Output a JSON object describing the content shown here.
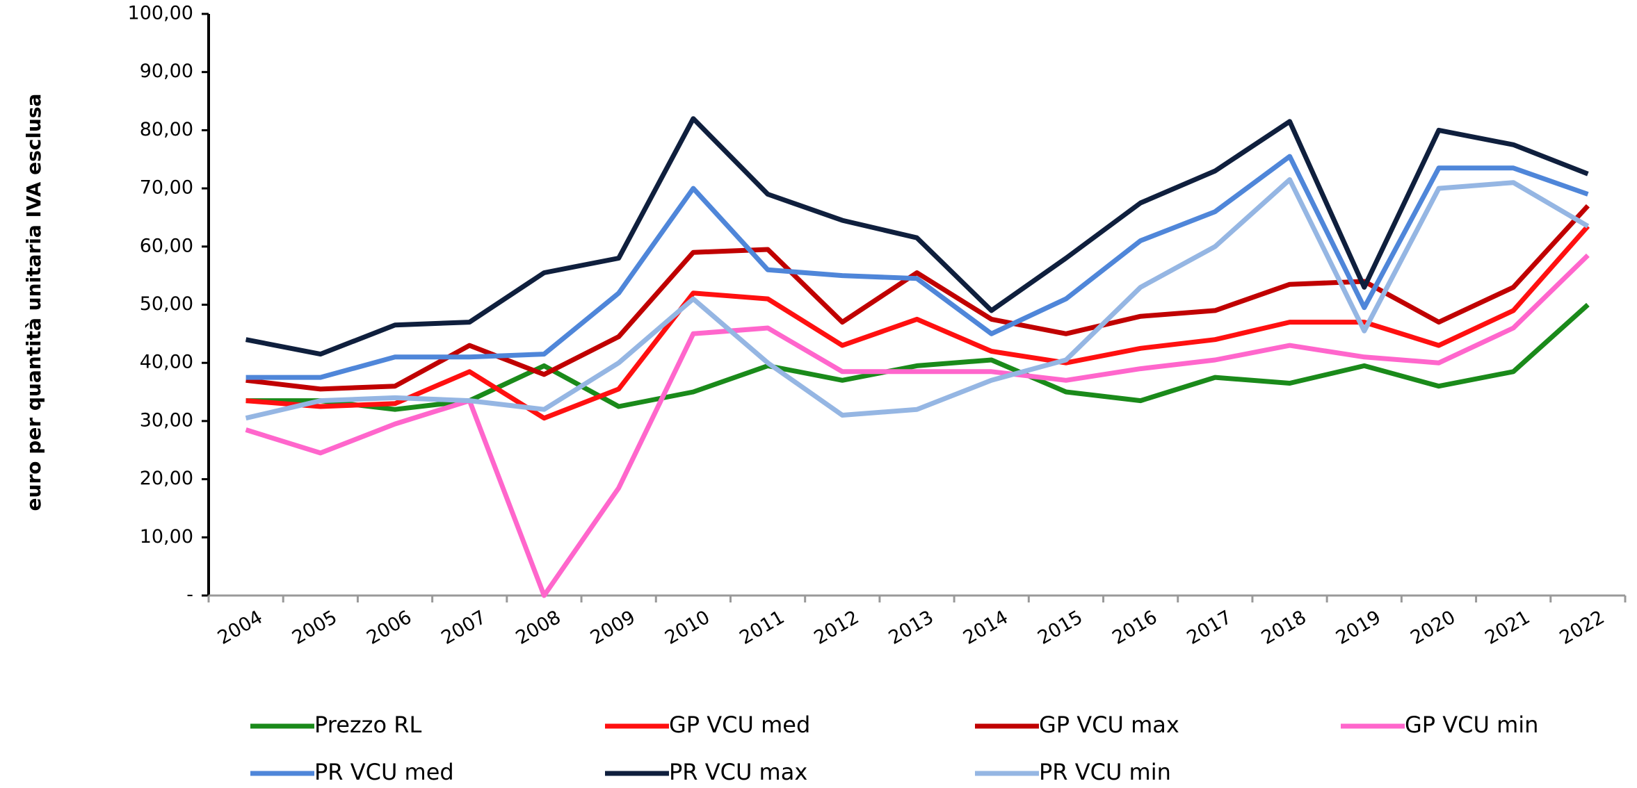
{
  "chart_data": {
    "type": "line",
    "y_label": "euro per quantità unitaria  IVA  esclusa",
    "categories": [
      "2004",
      "2005",
      "2006",
      "2007",
      "2008",
      "2009",
      "2010",
      "2011",
      "2012",
      "2013",
      "2014",
      "2015",
      "2016",
      "2017",
      "2018",
      "2019",
      "2020",
      "2021",
      "2022"
    ],
    "ylim": [
      0,
      100
    ],
    "yticks": [
      {
        "value": 0,
        "label": "-"
      },
      {
        "value": 10,
        "label": "10,00"
      },
      {
        "value": 20,
        "label": "20,00"
      },
      {
        "value": 30,
        "label": "30,00"
      },
      {
        "value": 40,
        "label": "40,00"
      },
      {
        "value": 50,
        "label": "50,00"
      },
      {
        "value": 60,
        "label": "60,00"
      },
      {
        "value": 70,
        "label": "70,00"
      },
      {
        "value": 80,
        "label": "80,00"
      },
      {
        "value": 90,
        "label": "90,00"
      },
      {
        "value": 100,
        "label": "100,00"
      }
    ],
    "grid": false,
    "legend": "bottom",
    "series": [
      {
        "name": "Prezzo RL",
        "color": "#1a8a1a",
        "values": [
          33.5,
          33.5,
          32,
          33.5,
          39.5,
          32.5,
          35,
          39.5,
          37,
          39.5,
          40.5,
          35,
          33.5,
          37.5,
          36.5,
          39.5,
          36,
          38.5,
          50
        ]
      },
      {
        "name": "GP VCU med",
        "color": "#ff1010",
        "values": [
          33.5,
          32.5,
          33,
          38.5,
          30.5,
          35.5,
          52,
          51,
          43,
          47.5,
          42,
          40,
          42.5,
          44,
          47,
          47,
          43,
          49,
          63.5
        ]
      },
      {
        "name": "GP VCU max",
        "color": "#c00000",
        "values": [
          37,
          35.5,
          36,
          43,
          38,
          44.5,
          59,
          59.5,
          47,
          55.5,
          47.5,
          45,
          48,
          49,
          53.5,
          54,
          47,
          53,
          67
        ]
      },
      {
        "name": "GP VCU min",
        "color": "#ff66cc",
        "values": [
          28.5,
          24.5,
          29.5,
          33.5,
          0,
          18.5,
          45,
          46,
          38.5,
          38.5,
          38.5,
          37,
          39,
          40.5,
          43,
          41,
          40,
          46,
          58.5
        ]
      },
      {
        "name": "PR VCU med",
        "color": "#4f86d9",
        "values": [
          37.5,
          37.5,
          41,
          41,
          41.5,
          52,
          70,
          56,
          55,
          54.5,
          45,
          51,
          61,
          66,
          75.5,
          49.5,
          73.5,
          73.5,
          69
        ]
      },
      {
        "name": "PR VCU max",
        "color": "#0f1f3d",
        "values": [
          44,
          41.5,
          46.5,
          47,
          55.5,
          58,
          82,
          69,
          64.5,
          61.5,
          49,
          58,
          67.5,
          73,
          81.5,
          53,
          80,
          77.5,
          72.5
        ]
      },
      {
        "name": "PR VCU min",
        "color": "#95b6e3",
        "values": [
          30.5,
          33.5,
          34,
          33.5,
          32,
          40,
          51,
          40,
          31,
          32,
          37,
          40.5,
          53,
          60,
          71.5,
          45.5,
          70,
          71,
          63.5
        ]
      }
    ]
  }
}
